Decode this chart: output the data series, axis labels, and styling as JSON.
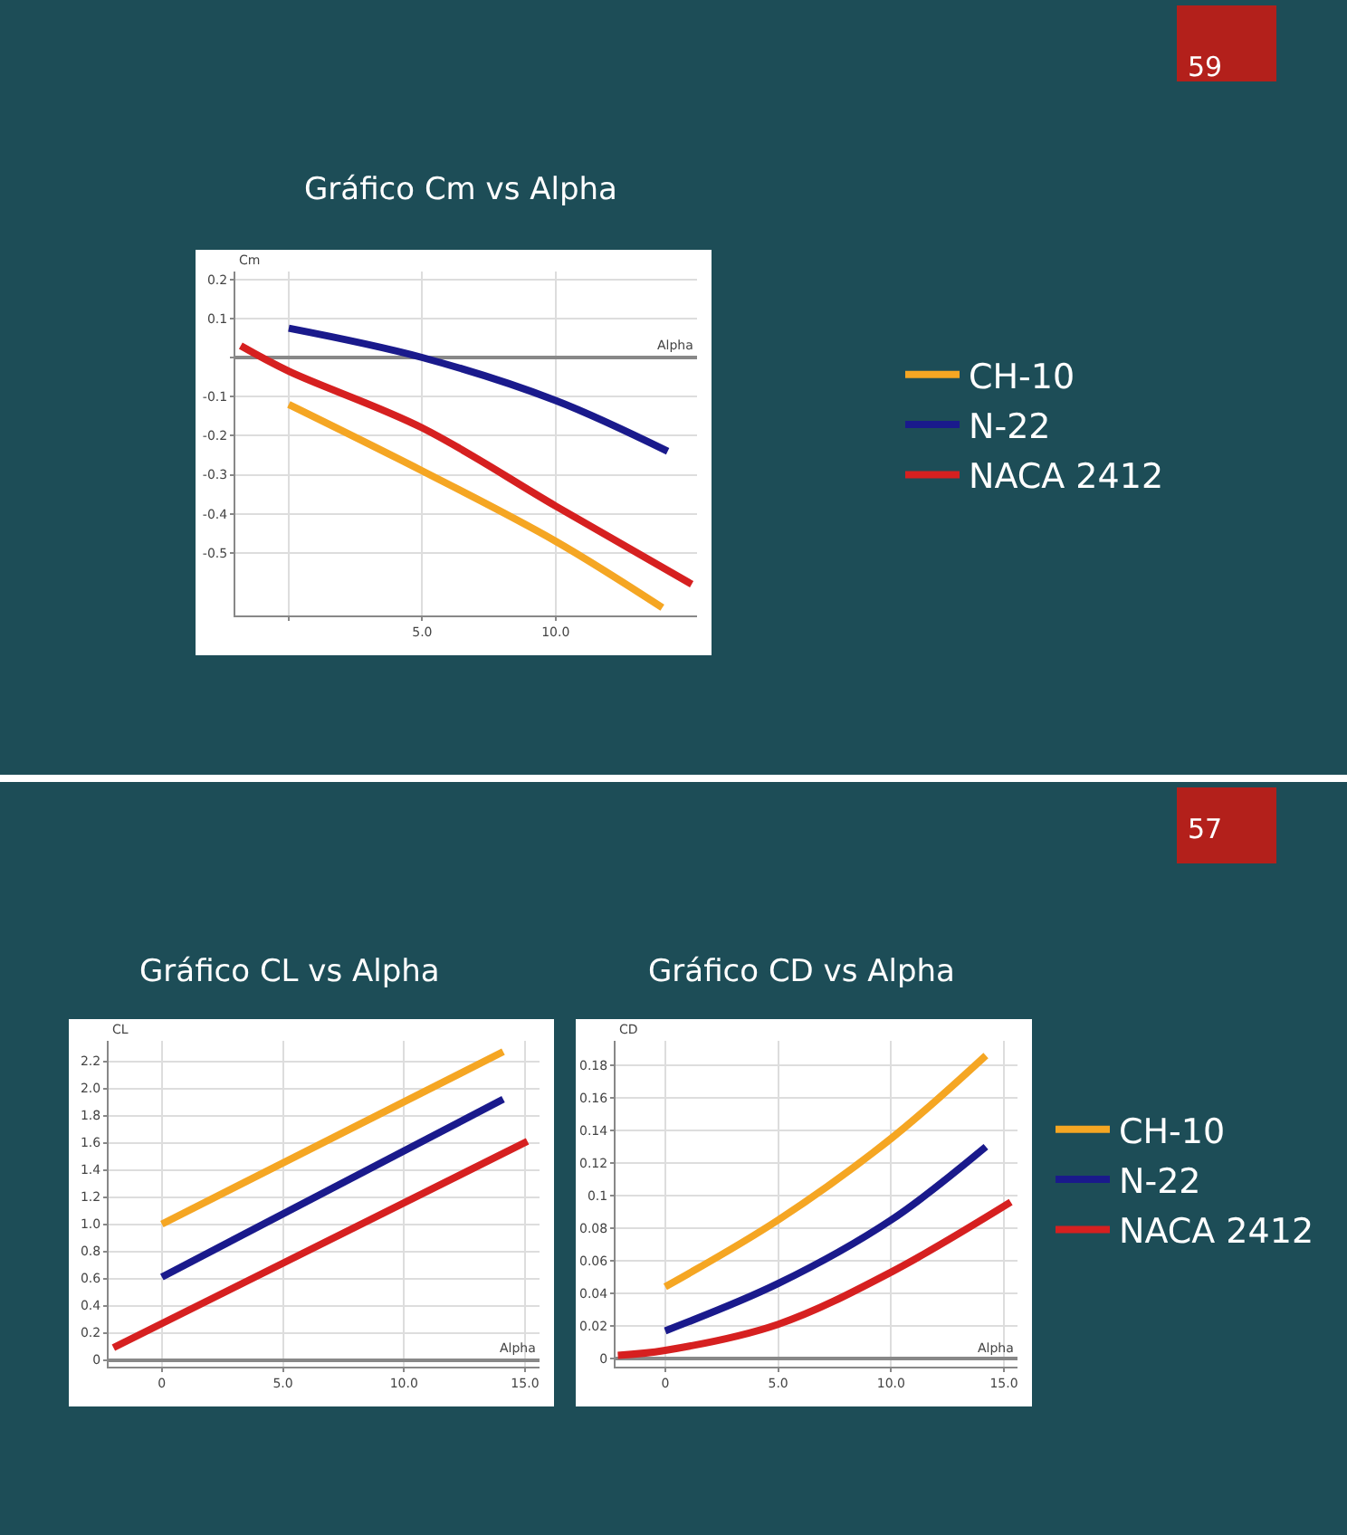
{
  "chart_data": [
    {
      "type": "line",
      "title": "Gráfico Cm vs Alpha",
      "xlabel": "Alpha",
      "ylabel": "Cm",
      "annotations": [
        "59"
      ],
      "grid": true,
      "legend": "right",
      "marker": "none",
      "line_style": "solid",
      "xlim": [
        -2,
        15.3
      ],
      "ylim": [
        -0.66,
        0.22
      ],
      "xticks": [
        {
          "value": 0,
          "label": null
        },
        {
          "value": 5,
          "label": "5.0"
        },
        {
          "value": 10,
          "label": "10.0"
        }
      ],
      "yticks": [
        {
          "value": -0.5,
          "label": "-0.5"
        },
        {
          "value": -0.4,
          "label": "-0.4"
        },
        {
          "value": -0.3,
          "label": "-0.3"
        },
        {
          "value": -0.2,
          "label": "-0.2"
        },
        {
          "value": -0.1,
          "label": "-0.1"
        },
        {
          "value": 0,
          "label": null
        },
        {
          "value": 0.1,
          "label": "0.1"
        },
        {
          "value": 0.2,
          "label": "0.2"
        }
      ],
      "series": [
        {
          "name": "CH-10",
          "color": "#f5a623",
          "x": [
            0,
            5,
            10,
            14
          ],
          "values": [
            -0.12,
            -0.29,
            -0.47,
            -0.64
          ]
        },
        {
          "name": "N-22",
          "color": "#1a1a8c",
          "x": [
            0,
            5,
            10,
            14.2
          ],
          "values": [
            0.075,
            0.0,
            -0.11,
            -0.24
          ]
        },
        {
          "name": "NACA 2412",
          "color": "#d62020",
          "x": [
            -1.8,
            0,
            5,
            10,
            15.1
          ],
          "values": [
            0.03,
            -0.035,
            -0.18,
            -0.38,
            -0.58
          ]
        }
      ]
    },
    {
      "type": "line",
      "title": "Gráfico CL vs Alpha",
      "xlabel": "Alpha",
      "ylabel": "CL",
      "annotations": [
        "57"
      ],
      "grid": true,
      "legend": "right",
      "marker": "none",
      "line_style": "solid",
      "xlim": [
        -2.2,
        15.6
      ],
      "ylim": [
        -0.05,
        2.35
      ],
      "xticks": [
        {
          "value": 0,
          "label": "0"
        },
        {
          "value": 5,
          "label": "5.0"
        },
        {
          "value": 10,
          "label": "10.0"
        },
        {
          "value": 15,
          "label": "15.0"
        }
      ],
      "yticks": [
        {
          "value": 0,
          "label": "0"
        },
        {
          "value": 0.2,
          "label": "0.2"
        },
        {
          "value": 0.4,
          "label": "0.4"
        },
        {
          "value": 0.6,
          "label": "0.6"
        },
        {
          "value": 0.8,
          "label": "0.8"
        },
        {
          "value": 1,
          "label": "1.0"
        },
        {
          "value": 1.2,
          "label": "1.2"
        },
        {
          "value": 1.4,
          "label": "1.4"
        },
        {
          "value": 1.6,
          "label": "1.6"
        },
        {
          "value": 1.8,
          "label": "1.8"
        },
        {
          "value": 2,
          "label": "2.0"
        },
        {
          "value": 2.2,
          "label": "2.2"
        }
      ],
      "series": [
        {
          "name": "CH-10",
          "color": "#f5a623",
          "x": [
            0,
            14.1
          ],
          "values": [
            1.0,
            2.27
          ]
        },
        {
          "name": "N-22",
          "color": "#1a1a8c",
          "x": [
            0,
            14.1
          ],
          "values": [
            0.61,
            1.92
          ]
        },
        {
          "name": "NACA 2412",
          "color": "#d62020",
          "x": [
            -2.0,
            15.1
          ],
          "values": [
            0.09,
            1.61
          ]
        }
      ]
    },
    {
      "type": "line",
      "title": "Gráfico CD vs Alpha",
      "xlabel": "Alpha",
      "ylabel": "CD",
      "grid": true,
      "marker": "none",
      "line_style": "solid",
      "xlim": [
        -2.2,
        15.6
      ],
      "ylim": [
        -0.005,
        0.195
      ],
      "xticks": [
        {
          "value": 0,
          "label": "0"
        },
        {
          "value": 5,
          "label": "5.0"
        },
        {
          "value": 10,
          "label": "10.0"
        },
        {
          "value": 15,
          "label": "15.0"
        }
      ],
      "yticks": [
        0,
        0.02,
        0.04,
        0.06,
        0.08,
        0.1,
        0.12,
        0.14,
        0.16,
        0.18
      ],
      "series": [
        {
          "color": "#f5a623",
          "x": [
            0,
            5,
            10,
            14.2
          ],
          "values": [
            0.044,
            0.085,
            0.135,
            0.186
          ]
        },
        {
          "color": "#1a1a8c",
          "x": [
            0,
            5,
            10,
            14.2
          ],
          "values": [
            0.017,
            0.046,
            0.085,
            0.13
          ]
        },
        {
          "color": "#d62020",
          "x": [
            -2.1,
            0,
            5,
            10,
            15.3
          ],
          "values": [
            0.002,
            0.005,
            0.021,
            0.053,
            0.096
          ]
        }
      ]
    }
  ]
}
